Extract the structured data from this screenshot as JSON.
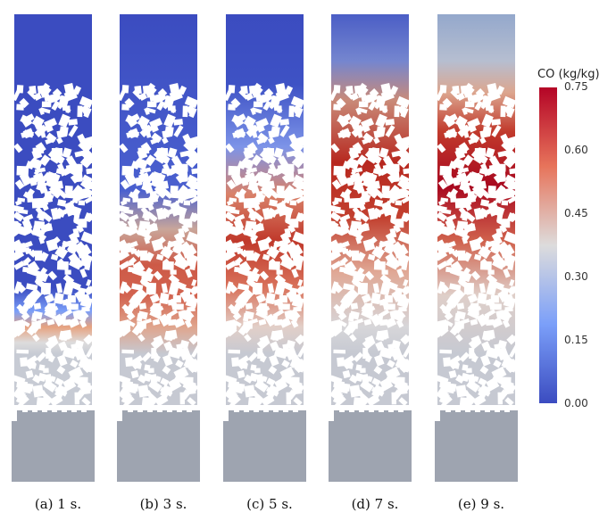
{
  "panels": [
    {
      "id": "a",
      "caption": "(a)  1 s.",
      "co_front": 0.85
    },
    {
      "id": "b",
      "caption": "(b)  3 s.",
      "co_front": 0.62
    },
    {
      "id": "c",
      "caption": "(c)  5 s.",
      "co_front": 0.48
    },
    {
      "id": "d",
      "caption": "(d)  7 s.",
      "co_front": 0.3
    },
    {
      "id": "e",
      "caption": "(e)  9 s.",
      "co_front": 0.12
    }
  ],
  "colorbar": {
    "title": "CO (kg/kg)",
    "ticks": [
      "0.75",
      "0.60",
      "0.45",
      "0.30",
      "0.15",
      "0.00"
    ],
    "colors": {
      "low": "#3b4cc0",
      "mid": "#dddcdc",
      "high": "#b40426"
    }
  }
}
